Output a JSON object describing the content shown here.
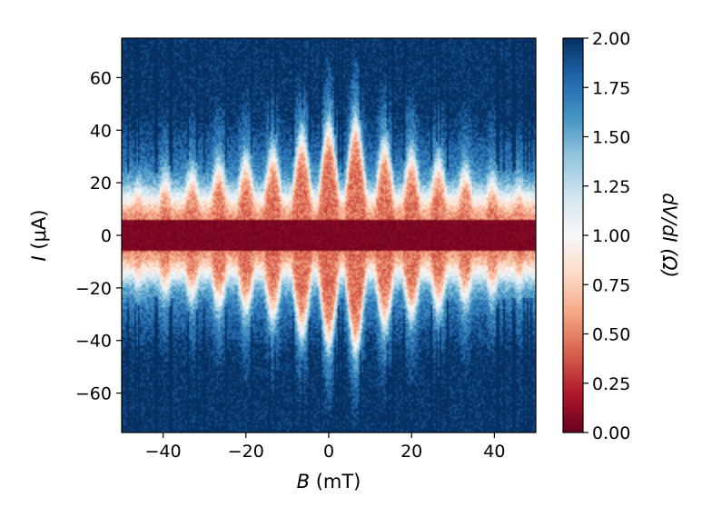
{
  "chart_data": {
    "type": "heatmap",
    "title": "",
    "x_axis": {
      "label_var": "B",
      "label_unit": " (mT)",
      "range": [
        -50,
        50
      ],
      "ticks": [
        -40,
        -20,
        0,
        20,
        40
      ],
      "tick_labels": [
        "−40",
        "−20",
        "0",
        "20",
        "40"
      ]
    },
    "y_axis": {
      "label_var": "I",
      "label_unit": " (μA)",
      "range": [
        -75,
        75
      ],
      "ticks": [
        60,
        40,
        20,
        0,
        -20,
        -40,
        -60
      ],
      "tick_labels": [
        "60",
        "40",
        "20",
        "0",
        "−20",
        "−40",
        "−60"
      ]
    },
    "colorbar": {
      "label": "dV/dI (Ω)",
      "range": [
        0,
        2
      ],
      "colormap": "RdBu",
      "ticks": [
        2.0,
        1.75,
        1.5,
        1.25,
        1.0,
        0.75,
        0.5,
        0.25,
        0.0
      ],
      "tick_labels": [
        "2.00",
        "1.75",
        "1.50",
        "1.25",
        "1.00",
        "0.75",
        "0.50",
        "0.25",
        "0.00"
      ],
      "colors": [
        "#67001f",
        "#b2182b",
        "#d6604d",
        "#f4a582",
        "#fddbc7",
        "#f7f7f7",
        "#d1e5f0",
        "#92c5de",
        "#4393c3",
        "#2166ac",
        "#053061"
      ]
    },
    "pattern": {
      "description_values": "Fraunhofer-like interference: low-resistance (dV/dI≈0) central band around I=0 modulated by B, lobes peaking at I≈40 μA near B=0 and decreasing with |B|; high resistance (≈2) at |I|>60 μA",
      "lobe_centers_mT": [
        -46,
        -39.5,
        -33,
        -26.5,
        -20,
        -13.5,
        -6.5,
        0,
        6.5,
        13.5,
        20,
        26.5,
        33,
        39.5,
        46
      ],
      "lobe_peak_current_uA": [
        17,
        20,
        22,
        25,
        27,
        30,
        36,
        40,
        42,
        33,
        29,
        26,
        23,
        20,
        17
      ],
      "central_band_halfwidth_uA": 6
    }
  }
}
